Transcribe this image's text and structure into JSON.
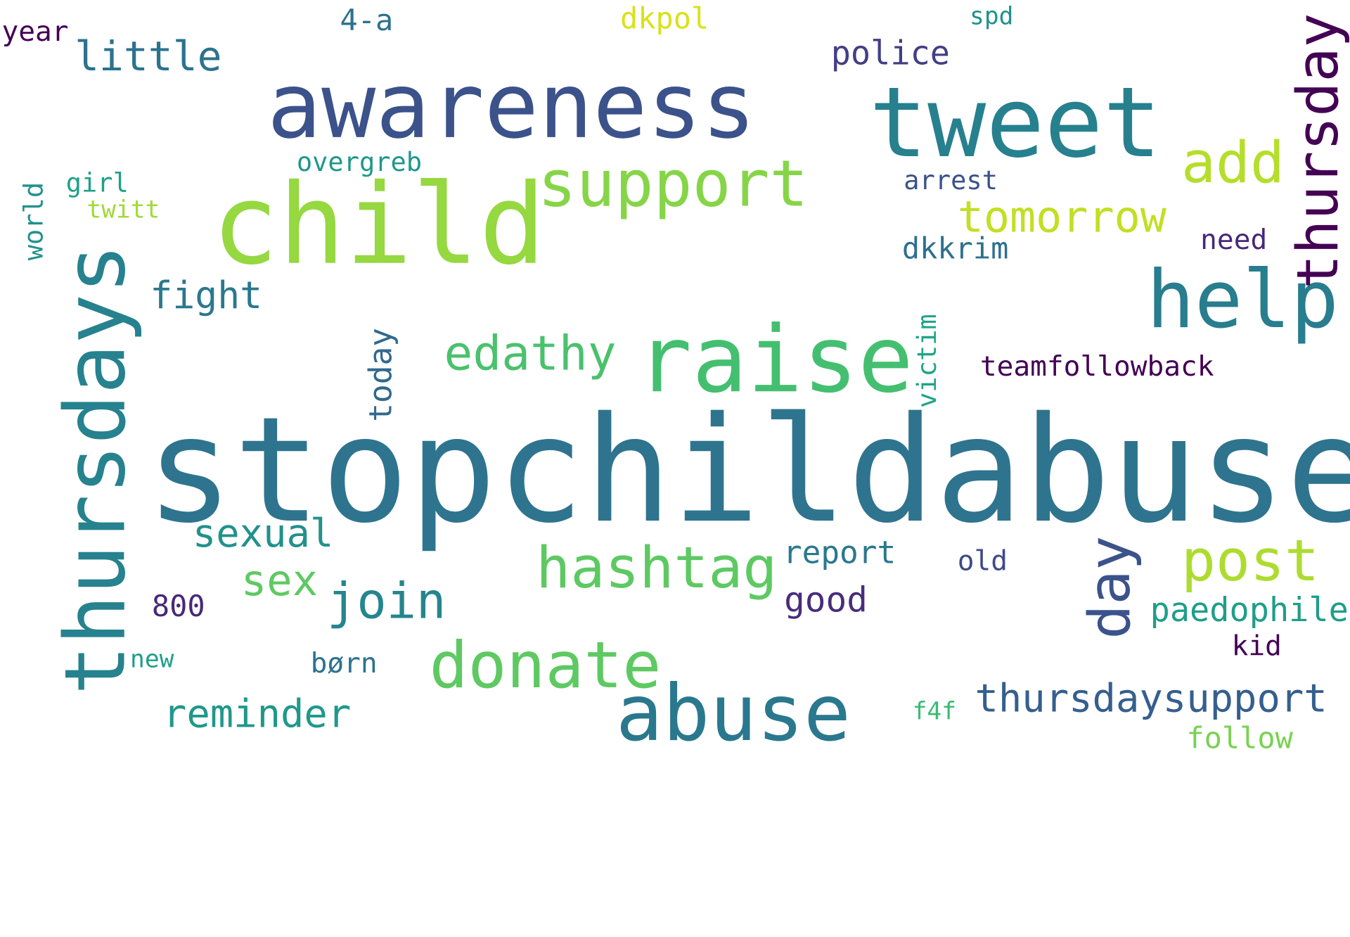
{
  "words": [
    {
      "key": "stopchildabuse",
      "text": "stopchildabuse",
      "color": "#2f748e",
      "vertical": false
    },
    {
      "key": "child",
      "text": "child",
      "color": "#95d840",
      "vertical": false
    },
    {
      "key": "awareness",
      "text": "awareness",
      "color": "#3b528b",
      "vertical": false
    },
    {
      "key": "tweet",
      "text": "tweet",
      "color": "#27808e",
      "vertical": false
    },
    {
      "key": "raise",
      "text": "raise",
      "color": "#44bf70",
      "vertical": false
    },
    {
      "key": "thursdays",
      "text": "thursdays",
      "color": "#26828e",
      "vertical": true
    },
    {
      "key": "abuse",
      "text": "abuse",
      "color": "#2a788e",
      "vertical": false
    },
    {
      "key": "support",
      "text": "support",
      "color": "#86d549",
      "vertical": false
    },
    {
      "key": "help",
      "text": "help",
      "color": "#287d8e",
      "vertical": false
    },
    {
      "key": "thursday",
      "text": "thursday",
      "color": "#440154",
      "vertical": true
    },
    {
      "key": "donate",
      "text": "donate",
      "color": "#5ec962",
      "vertical": false
    },
    {
      "key": "hashtag",
      "text": "hashtag",
      "color": "#5ec962",
      "vertical": false
    },
    {
      "key": "add",
      "text": "add",
      "color": "#b5de2b",
      "vertical": false
    },
    {
      "key": "post",
      "text": "post",
      "color": "#addc30",
      "vertical": false
    },
    {
      "key": "day",
      "text": "day",
      "color": "#3b528b",
      "vertical": true
    },
    {
      "key": "edathy",
      "text": "edathy",
      "color": "#4ac16d",
      "vertical": false
    },
    {
      "key": "tomorrow",
      "text": "tomorrow",
      "color": "#c2df23",
      "vertical": false
    },
    {
      "key": "join",
      "text": "join",
      "color": "#25858e",
      "vertical": false
    },
    {
      "key": "little",
      "text": "little",
      "color": "#2c728e",
      "vertical": false
    },
    {
      "key": "thursdaysupport",
      "text": "thursdaysupport",
      "color": "#355f8d",
      "vertical": false
    },
    {
      "key": "reminder",
      "text": "reminder",
      "color": "#1f988b",
      "vertical": false
    },
    {
      "key": "sexual",
      "text": "sexual",
      "color": "#21918c",
      "vertical": false
    },
    {
      "key": "sex",
      "text": "sex",
      "color": "#5ec962",
      "vertical": false
    },
    {
      "key": "fight",
      "text": "fight",
      "color": "#2a788e",
      "vertical": false
    },
    {
      "key": "police",
      "text": "police",
      "color": "#433e85",
      "vertical": false
    },
    {
      "key": "good",
      "text": "good",
      "color": "#472d7b",
      "vertical": false
    },
    {
      "key": "paedophile",
      "text": "paedophile",
      "color": "#1f9e89",
      "vertical": false
    },
    {
      "key": "today",
      "text": "today",
      "color": "#31688e",
      "vertical": true
    },
    {
      "key": "report",
      "text": "report",
      "color": "#2a788e",
      "vertical": false
    },
    {
      "key": "teamfollowback",
      "text": "teamfollowback",
      "color": "#440154",
      "vertical": false
    },
    {
      "key": "dkpol",
      "text": "dkpol",
      "color": "#d8e219",
      "vertical": false
    },
    {
      "key": "dkkrim",
      "text": "dkkrim",
      "color": "#2d708e",
      "vertical": false
    },
    {
      "key": "follow",
      "text": "follow",
      "color": "#7ad151",
      "vertical": false
    },
    {
      "key": "800",
      "text": "800",
      "color": "#482878",
      "vertical": false
    },
    {
      "key": "4-a",
      "text": "4-a",
      "color": "#2d708e",
      "vertical": false
    },
    {
      "key": "victim",
      "text": "victim",
      "color": "#20a486",
      "vertical": true
    },
    {
      "key": "year",
      "text": "year",
      "color": "#440154",
      "vertical": false
    },
    {
      "key": "world",
      "text": "world",
      "color": "#21918c",
      "vertical": true
    },
    {
      "key": "overgreb",
      "text": "overgreb",
      "color": "#1f988b",
      "vertical": false
    },
    {
      "key": "arrest",
      "text": "arrest",
      "color": "#3b528b",
      "vertical": false
    },
    {
      "key": "need",
      "text": "need",
      "color": "#482878",
      "vertical": false
    },
    {
      "key": "old",
      "text": "old",
      "color": "#3e4a89",
      "vertical": false
    },
    {
      "key": "kid",
      "text": "kid",
      "color": "#440154",
      "vertical": false
    },
    {
      "key": "born",
      "text": "børn",
      "color": "#2c728e",
      "vertical": false
    },
    {
      "key": "girl",
      "text": "girl",
      "color": "#1fa187",
      "vertical": false
    },
    {
      "key": "twitt",
      "text": "twitt",
      "color": "#a0da39",
      "vertical": false
    },
    {
      "key": "spd",
      "text": "spd",
      "color": "#21918c",
      "vertical": false
    },
    {
      "key": "new",
      "text": "new",
      "color": "#1f9e89",
      "vertical": false
    },
    {
      "key": "f4f",
      "text": "f4f",
      "color": "#3bbb75",
      "vertical": false
    }
  ]
}
